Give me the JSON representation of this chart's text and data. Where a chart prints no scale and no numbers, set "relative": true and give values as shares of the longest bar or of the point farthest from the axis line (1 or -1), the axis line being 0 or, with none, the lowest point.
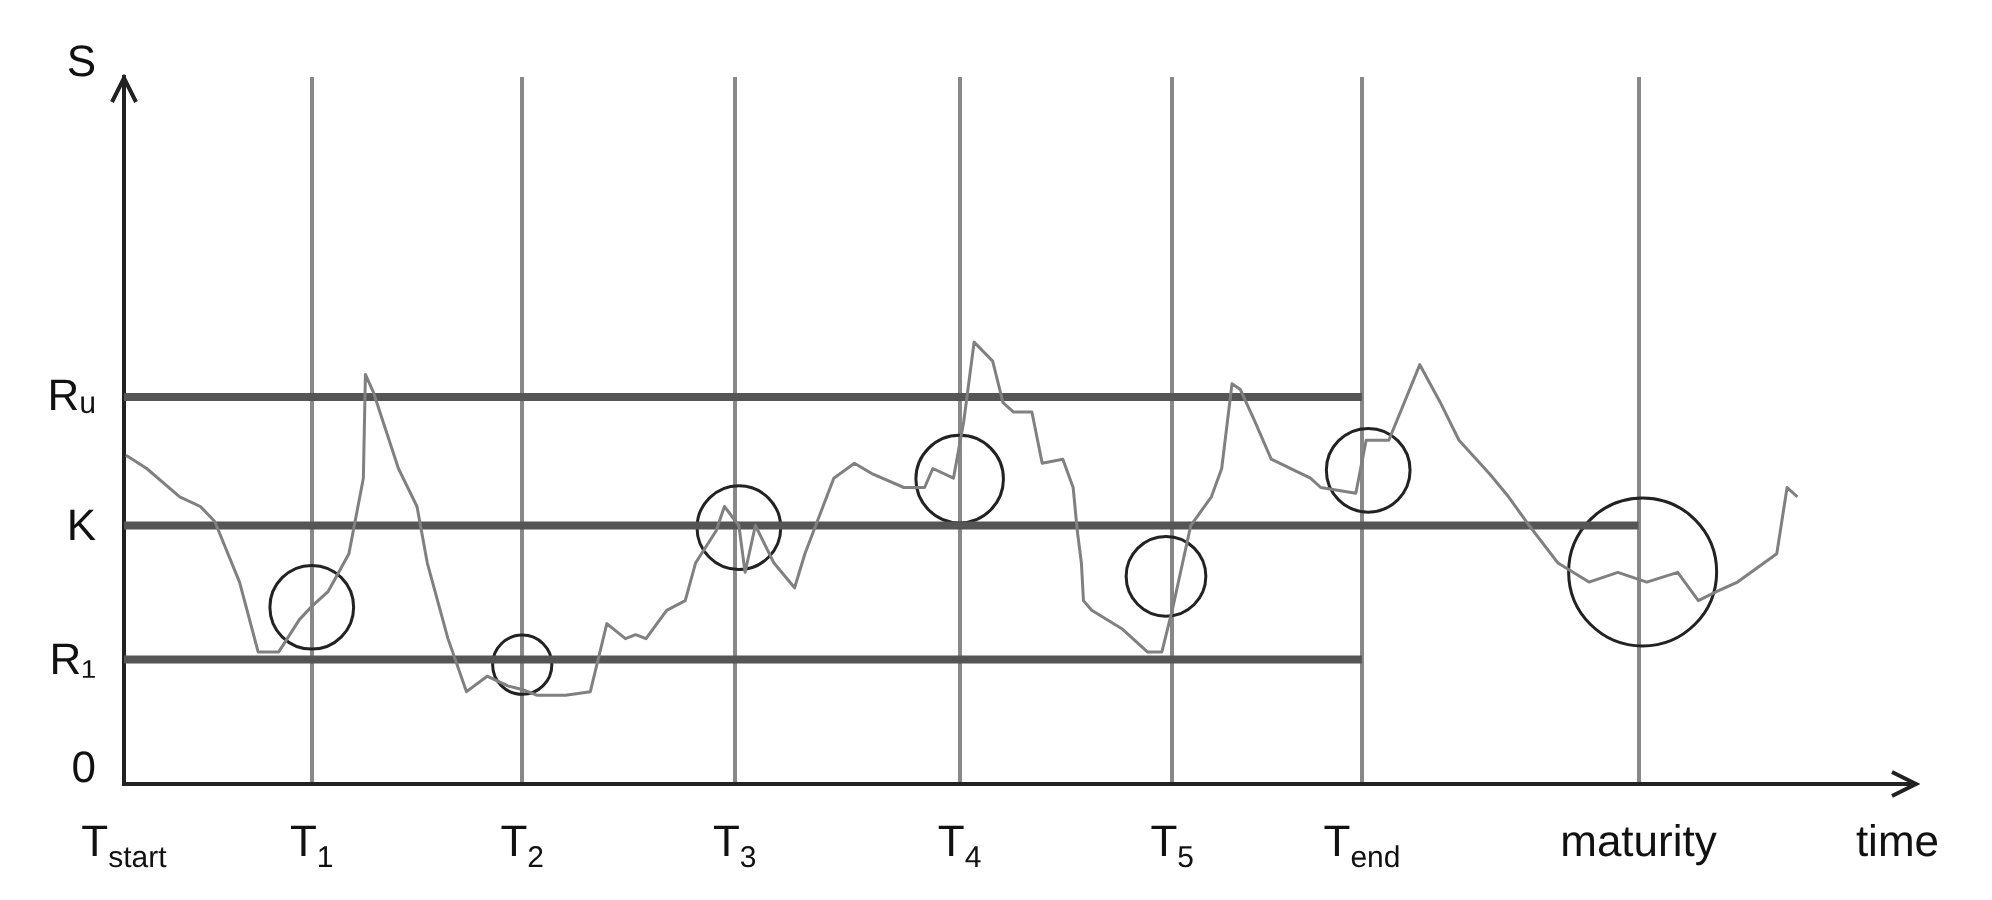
{
  "chart_data": {
    "type": "line",
    "xlabel": "time",
    "relative": true,
    "grid": "x",
    "marker": "none",
    "xlim": [
      0,
      8.68
    ],
    "xticks": [
      {
        "value": 0,
        "label": "T$_{start}$"
      },
      {
        "value": 0.91,
        "label": "T$_{1}$"
      },
      {
        "value": 1.93,
        "label": "T$_{2}$"
      },
      {
        "value": 2.96,
        "label": "T$_{3}$"
      },
      {
        "value": 4.05,
        "label": "T$_{4}$"
      },
      {
        "value": 5.08,
        "label": "T$_{5}$"
      },
      {
        "value": 6.0,
        "label": "T$_{end}$"
      },
      {
        "value": 7.34,
        "label": "maturity"
      }
    ],
    "annotations": [
      "S",
      "0"
    ],
    "series": [
      {
        "color": "#808080",
        "x": [
          0.01,
          0.11,
          0.27,
          0.37,
          0.44,
          0.56,
          0.65,
          0.75,
          0.85,
          0.91,
          0.99,
          1.09,
          1.16,
          1.17,
          1.21,
          1.33,
          1.42,
          1.47,
          1.57,
          1.66,
          1.76,
          1.86,
          1.93,
          2.0,
          2.14,
          2.26,
          2.34,
          2.43,
          2.48,
          2.53,
          2.63,
          2.72,
          2.77,
          2.87,
          2.91,
          2.98,
          3.01,
          3.06,
          3.15,
          3.25,
          3.3,
          3.44,
          3.54,
          3.63,
          3.78,
          3.88,
          3.92,
          4.02,
          4.07,
          4.12,
          4.21,
          4.26,
          4.31,
          4.4,
          4.45,
          4.55,
          4.6,
          4.62,
          4.64,
          4.65,
          4.69,
          4.84,
          4.96,
          5.03,
          5.08,
          5.17,
          5.27,
          5.32,
          5.37,
          5.41,
          5.48,
          5.56,
          5.75,
          5.8,
          5.97,
          6.02,
          6.13,
          6.28,
          6.38,
          6.47,
          6.62,
          6.71,
          6.81,
          6.95,
          7.1,
          7.24,
          7.38,
          7.53,
          7.63,
          7.72,
          7.82,
          8.01,
          8.06,
          8.11
        ],
        "values": [
          0.744,
          0.714,
          0.65,
          0.628,
          0.594,
          0.457,
          0.299,
          0.299,
          0.372,
          0.402,
          0.436,
          0.521,
          0.692,
          0.927,
          0.885,
          0.714,
          0.628,
          0.5,
          0.329,
          0.209,
          0.244,
          0.222,
          0.214,
          0.201,
          0.201,
          0.209,
          0.363,
          0.329,
          0.338,
          0.329,
          0.393,
          0.415,
          0.5,
          0.573,
          0.628,
          0.585,
          0.479,
          0.585,
          0.5,
          0.444,
          0.521,
          0.692,
          0.726,
          0.701,
          0.671,
          0.671,
          0.714,
          0.692,
          0.821,
          1.0,
          0.957,
          0.863,
          0.842,
          0.842,
          0.726,
          0.735,
          0.671,
          0.573,
          0.5,
          0.415,
          0.393,
          0.35,
          0.299,
          0.299,
          0.393,
          0.585,
          0.65,
          0.714,
          0.906,
          0.893,
          0.821,
          0.735,
          0.692,
          0.671,
          0.658,
          0.778,
          0.778,
          0.949,
          0.863,
          0.778,
          0.701,
          0.65,
          0.585,
          0.5,
          0.457,
          0.479,
          0.457,
          0.479,
          0.415,
          0.436,
          0.457,
          0.521,
          0.671,
          0.65
        ]
      },
      {
        "name": "Rᵤ",
        "color": "#555555",
        "x": [
          0,
          6.0
        ],
        "values": [
          0.876,
          0.876
        ]
      },
      {
        "name": "K",
        "color": "#555555",
        "x": [
          0,
          7.34
        ],
        "values": [
          0.585,
          0.585
        ]
      },
      {
        "name": "R₁",
        "color": "#555555",
        "x": [
          0,
          6.0
        ],
        "values": [
          0.282,
          0.282
        ]
      },
      {
        "type": "bubble",
        "marker": "circle",
        "color": "#222222",
        "x": [
          0.91,
          1.93,
          2.98,
          4.05,
          5.05,
          6.03,
          7.36
        ],
        "values": [
          0.4,
          0.27,
          0.58,
          0.69,
          0.47,
          0.71,
          0.48
        ],
        "sizes": [
          0.32,
          0.16,
          0.32,
          0.35,
          0.29,
          0.32,
          1
        ]
      }
    ]
  }
}
